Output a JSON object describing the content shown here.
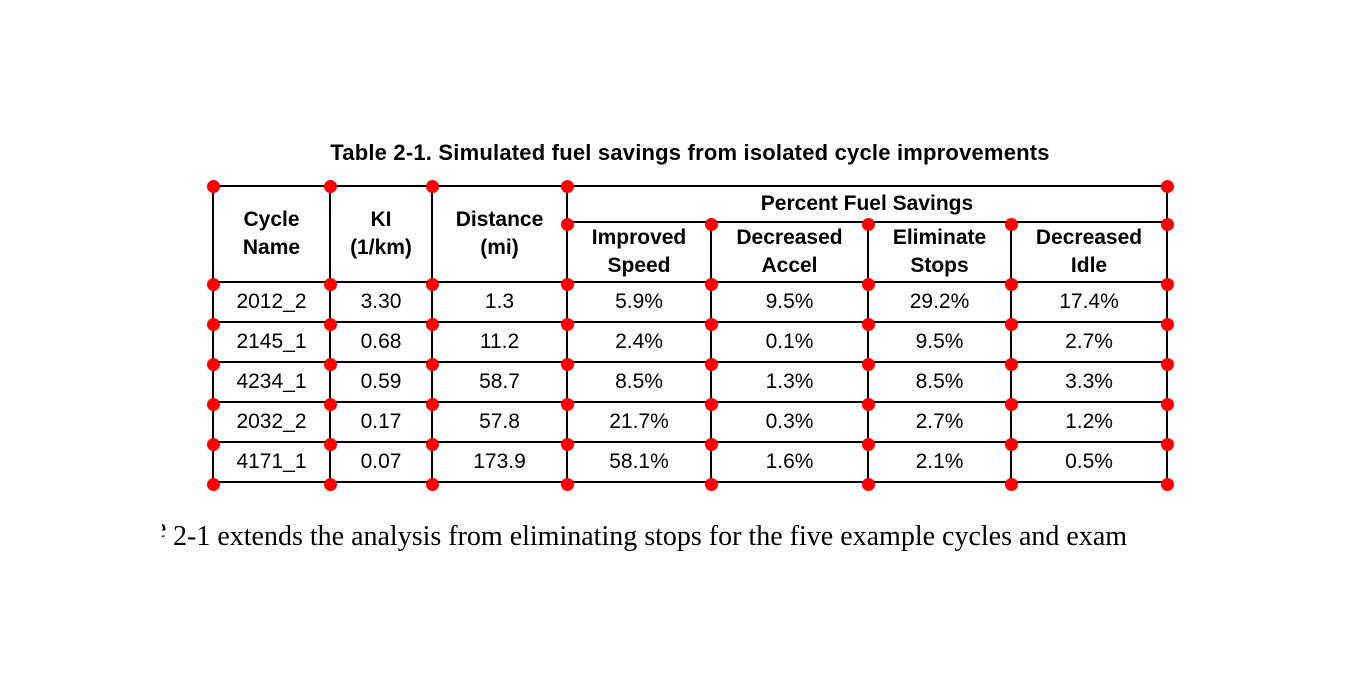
{
  "page": {
    "background": "#ffffff",
    "text_color": "#000000"
  },
  "table": {
    "title": "Table 2-1. Simulated fuel savings from isolated cycle improvements",
    "columns": [
      "Cycle\nName",
      "KI\n(1/km)",
      "Distance\n(mi)"
    ],
    "group_header": "Percent Fuel Savings",
    "sub_columns": [
      "Improved\nSpeed",
      "Decreased\nAccel",
      "Eliminate\nStops",
      "Decreased\nIdle"
    ],
    "rows": [
      [
        "2012_2",
        "3.30",
        "1.3",
        "5.9%",
        "9.5%",
        "29.2%",
        "17.4%"
      ],
      [
        "2145_1",
        "0.68",
        "11.2",
        "2.4%",
        "0.1%",
        "9.5%",
        "2.7%"
      ],
      [
        "4234_1",
        "0.59",
        "58.7",
        "8.5%",
        "1.3%",
        "8.5%",
        "3.3%"
      ],
      [
        "2032_2",
        "0.17",
        "57.8",
        "21.7%",
        "0.3%",
        "2.7%",
        "1.2%"
      ],
      [
        "4171_1",
        "0.07",
        "173.9",
        "58.1%",
        "1.6%",
        "2.1%",
        "0.5%"
      ]
    ]
  },
  "body_text": {
    "clipped_fragment": "e",
    "visible_text": "2-1 extends the analysis from eliminating stops for the five example cycles and exam"
  },
  "annotations": {
    "marker_name": "grid-keypoint-dot",
    "marker_color": "#ff0000",
    "marker_count": 58
  }
}
